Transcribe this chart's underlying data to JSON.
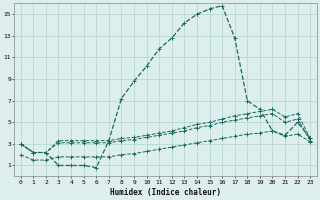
{
  "xlabel": "Humidex (Indice chaleur)",
  "background_color": "#dceeed",
  "grid_color": "#b8d8d6",
  "line_color": "#1a6b5a",
  "xlim": [
    -0.5,
    23.5
  ],
  "ylim": [
    0,
    16
  ],
  "xticks": [
    0,
    1,
    2,
    3,
    4,
    5,
    6,
    7,
    8,
    9,
    10,
    11,
    12,
    13,
    14,
    15,
    16,
    17,
    18,
    19,
    20,
    21,
    22,
    23
  ],
  "yticks": [
    1,
    3,
    5,
    7,
    9,
    11,
    13,
    15
  ],
  "line1_x": [
    0,
    1,
    2,
    3,
    4,
    5,
    6,
    7,
    8,
    9,
    10,
    11,
    12,
    13,
    14,
    15,
    16,
    17,
    18,
    19,
    20,
    21,
    22,
    23
  ],
  "line1_y": [
    3.0,
    2.2,
    2.2,
    1.0,
    1.0,
    1.0,
    0.8,
    3.3,
    7.2,
    8.8,
    10.2,
    11.8,
    12.8,
    14.2,
    15.0,
    15.5,
    15.8,
    12.8,
    7.0,
    6.2,
    4.2,
    3.8,
    5.0,
    3.5
  ],
  "line2_x": [
    0,
    1,
    2,
    3,
    4,
    5,
    6,
    7,
    8,
    9,
    10,
    11,
    12,
    13,
    14,
    15,
    16,
    17,
    18,
    19,
    20,
    21,
    22,
    23
  ],
  "line2_y": [
    3.0,
    2.2,
    2.2,
    3.3,
    3.3,
    3.3,
    3.3,
    3.3,
    3.5,
    3.6,
    3.8,
    4.0,
    4.2,
    4.5,
    4.8,
    5.0,
    5.3,
    5.6,
    5.8,
    6.0,
    6.2,
    5.5,
    5.8,
    3.5
  ],
  "line3_x": [
    0,
    1,
    2,
    3,
    4,
    5,
    6,
    7,
    8,
    9,
    10,
    11,
    12,
    13,
    14,
    15,
    16,
    17,
    18,
    19,
    20,
    21,
    22,
    23
  ],
  "line3_y": [
    3.0,
    2.2,
    2.2,
    3.1,
    3.1,
    3.1,
    3.1,
    3.1,
    3.3,
    3.4,
    3.6,
    3.8,
    4.0,
    4.2,
    4.5,
    4.7,
    5.0,
    5.2,
    5.4,
    5.6,
    5.8,
    5.0,
    5.3,
    3.3
  ],
  "line4_x": [
    0,
    1,
    2,
    3,
    4,
    5,
    6,
    7,
    8,
    9,
    10,
    11,
    12,
    13,
    14,
    15,
    16,
    17,
    18,
    19,
    20,
    21,
    22,
    23
  ],
  "line4_y": [
    2.0,
    1.5,
    1.5,
    1.8,
    1.8,
    1.8,
    1.8,
    1.8,
    2.0,
    2.1,
    2.3,
    2.5,
    2.7,
    2.9,
    3.1,
    3.3,
    3.5,
    3.7,
    3.9,
    4.0,
    4.2,
    3.7,
    3.9,
    3.2
  ]
}
